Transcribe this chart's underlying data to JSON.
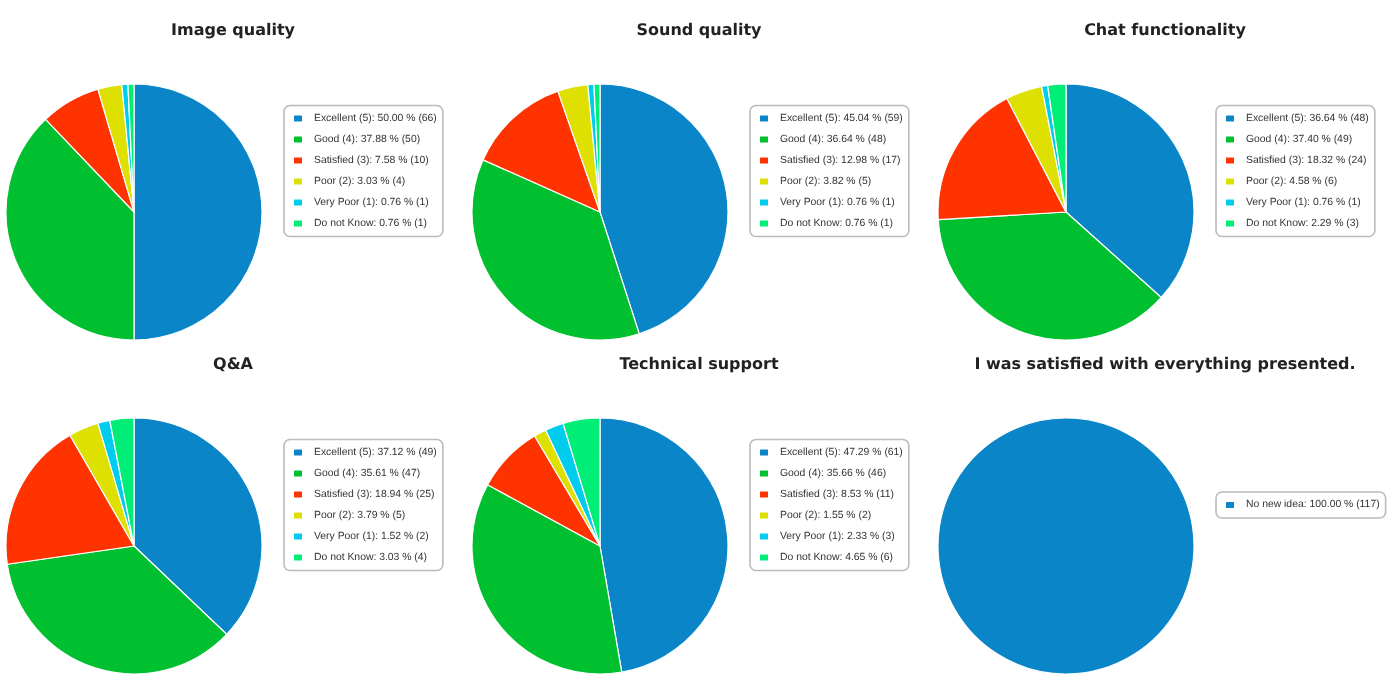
{
  "chart_data": [
    {
      "type": "pie",
      "title": "Image quality",
      "categories": [
        "Excellent (5): 50.00 % (66)",
        "Good (4): 37.88 % (50)",
        "Satisfied (3): 7.58 % (10)",
        "Poor (2): 3.03 % (4)",
        "Very Poor (1): 0.76 % (1)",
        "Do not Know: 0.76 % (1)"
      ],
      "values": [
        50.0,
        37.88,
        7.58,
        3.03,
        0.76,
        0.76
      ],
      "colors": [
        "#0a86c8",
        "#00c030",
        "#ff3300",
        "#dde000",
        "#00ccee",
        "#00ee77"
      ],
      "legend": "right"
    },
    {
      "type": "pie",
      "title": "Sound quality",
      "categories": [
        "Excellent (5): 45.04 % (59)",
        "Good (4): 36.64 % (48)",
        "Satisfied (3): 12.98 % (17)",
        "Poor (2): 3.82 % (5)",
        "Very Poor (1): 0.76 % (1)",
        "Do not Know: 0.76 % (1)"
      ],
      "values": [
        45.04,
        36.64,
        12.98,
        3.82,
        0.76,
        0.76
      ],
      "colors": [
        "#0a86c8",
        "#00c030",
        "#ff3300",
        "#dde000",
        "#00ccee",
        "#00ee77"
      ],
      "legend": "right"
    },
    {
      "type": "pie",
      "title": "Chat functionality",
      "categories": [
        "Excellent (5): 36.64 % (48)",
        "Good (4): 37.40 % (49)",
        "Satisfied (3): 18.32 % (24)",
        "Poor (2): 4.58 % (6)",
        "Very Poor (1): 0.76 % (1)",
        "Do not Know: 2.29 % (3)"
      ],
      "values": [
        36.64,
        37.4,
        18.32,
        4.58,
        0.76,
        2.29
      ],
      "colors": [
        "#0a86c8",
        "#00c030",
        "#ff3300",
        "#dde000",
        "#00ccee",
        "#00ee77"
      ],
      "legend": "right"
    },
    {
      "type": "pie",
      "title": "Q&A",
      "categories": [
        "Excellent (5): 37.12 % (49)",
        "Good (4): 35.61 % (47)",
        "Satisfied (3): 18.94 % (25)",
        "Poor (2): 3.79 % (5)",
        "Very Poor (1): 1.52 % (2)",
        "Do not Know: 3.03 % (4)"
      ],
      "values": [
        37.12,
        35.61,
        18.94,
        3.79,
        1.52,
        3.03
      ],
      "colors": [
        "#0a86c8",
        "#00c030",
        "#ff3300",
        "#dde000",
        "#00ccee",
        "#00ee77"
      ],
      "legend": "right"
    },
    {
      "type": "pie",
      "title": "Technical support",
      "categories": [
        "Excellent (5): 47.29 % (61)",
        "Good (4): 35.66 % (46)",
        "Satisfied (3): 8.53 % (11)",
        "Poor (2): 1.55 % (2)",
        "Very Poor (1): 2.33 % (3)",
        "Do not Know: 4.65 % (6)"
      ],
      "values": [
        47.29,
        35.66,
        8.53,
        1.55,
        2.33,
        4.65
      ],
      "colors": [
        "#0a86c8",
        "#00c030",
        "#ff3300",
        "#dde000",
        "#00ccee",
        "#00ee77"
      ],
      "legend": "right"
    },
    {
      "type": "pie",
      "title": "I was satisfied with everything presented.",
      "categories": [
        "No new idea: 100.00 % (117)"
      ],
      "values": [
        100.0
      ],
      "colors": [
        "#0a86c8"
      ],
      "legend": "right"
    }
  ]
}
